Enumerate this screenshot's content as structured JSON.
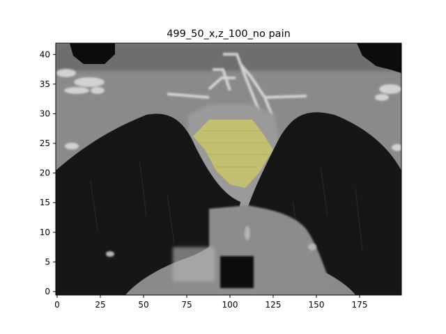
{
  "figure": {
    "title": "499_50_x,z_100_no pain"
  },
  "image": {
    "description_hidden": "",
    "x_range": [
      0,
      200
    ],
    "y_range": [
      0,
      42.5
    ]
  },
  "axes": {
    "x_ticks": [
      {
        "value": 0,
        "label": "0"
      },
      {
        "value": 25,
        "label": "25"
      },
      {
        "value": 50,
        "label": "50"
      },
      {
        "value": 75,
        "label": "75"
      },
      {
        "value": 100,
        "label": "100"
      },
      {
        "value": 125,
        "label": "125"
      },
      {
        "value": 150,
        "label": "150"
      },
      {
        "value": 175,
        "label": "175"
      }
    ],
    "y_ticks": [
      {
        "value": 0,
        "label": "0"
      },
      {
        "value": 5,
        "label": "5"
      },
      {
        "value": 10,
        "label": "10"
      },
      {
        "value": 15,
        "label": "15"
      },
      {
        "value": 20,
        "label": "20"
      },
      {
        "value": 25,
        "label": "25"
      },
      {
        "value": 30,
        "label": "30"
      },
      {
        "value": 35,
        "label": "35"
      },
      {
        "value": 40,
        "label": "40"
      }
    ]
  },
  "colors": {
    "overlay": "#c8c46a",
    "lung": "#141414",
    "tissue": "#7f7f7f",
    "bone": "#d8d8d8"
  }
}
